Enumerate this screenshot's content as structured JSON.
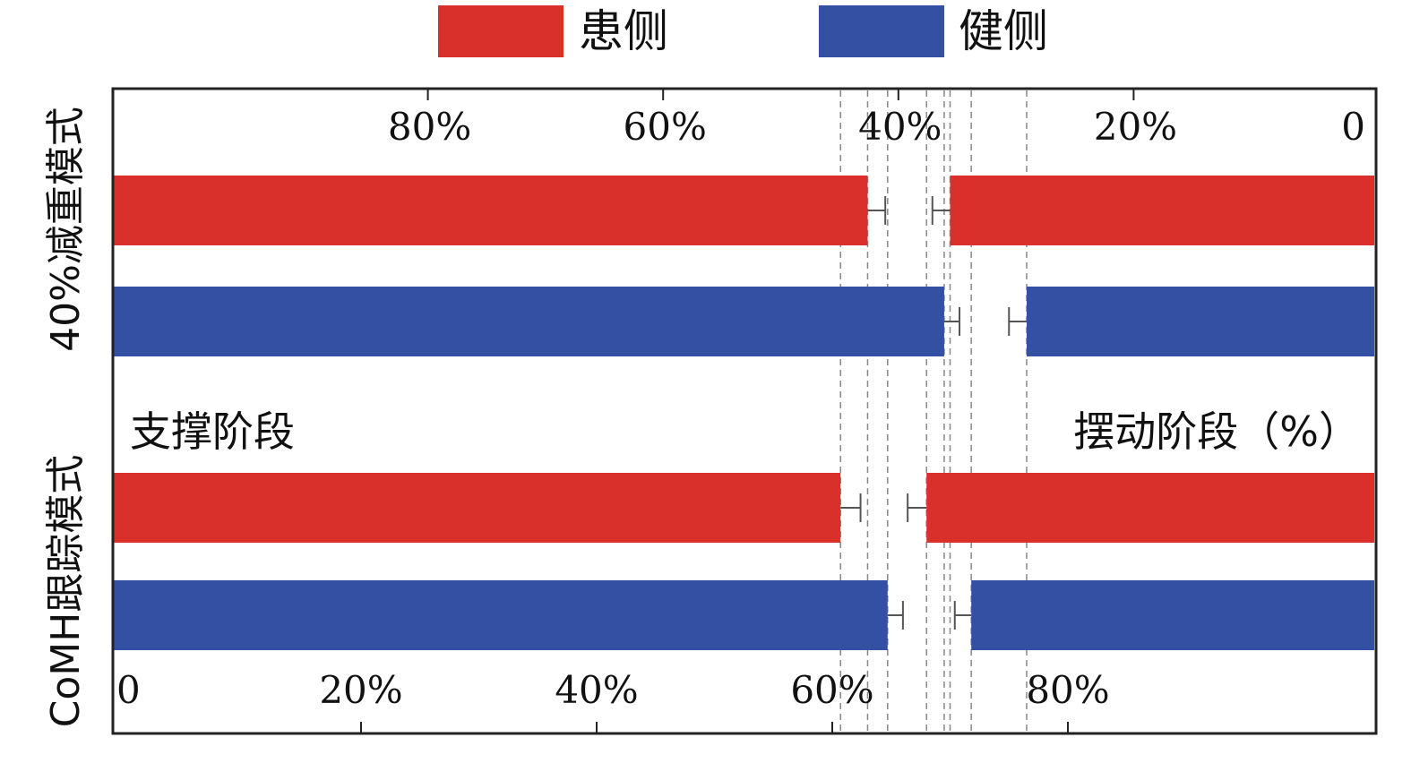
{
  "colors": {
    "affected": "#d9302b",
    "healthy": "#3450a2",
    "axis": "#222222",
    "guide": "#888888",
    "errorbar": "#555555"
  },
  "chart_data": {
    "type": "bar",
    "orientation": "horizontal",
    "legend": {
      "placement": "top",
      "entries": [
        "患侧",
        "健侧"
      ]
    },
    "stance_label": "支撑阶段",
    "swing_label": "摆动阶段（%）",
    "bottom_axis": {
      "direction": "left-to-right",
      "range": [
        0,
        100
      ],
      "ticks": [
        "0",
        "20%",
        "40%",
        "60%",
        "80%"
      ]
    },
    "top_axis": {
      "direction": "right-to-left",
      "range": [
        0,
        100
      ],
      "ticks": [
        "0",
        "20%",
        "40%",
        "60%",
        "80%"
      ]
    },
    "groups": [
      {
        "name": "40%减重模式",
        "bars": [
          {
            "series": "患侧",
            "stance_end": 63.0,
            "stance_err": 1.5,
            "swing_start": 70.0,
            "swing_err": 1.5
          },
          {
            "series": "健侧",
            "stance_end": 69.5,
            "stance_err": 1.3,
            "swing_start": 76.5,
            "swing_err": 1.5
          }
        ]
      },
      {
        "name": "CoMH跟踪模式",
        "bars": [
          {
            "series": "患侧",
            "stance_end": 60.7,
            "stance_err": 1.7,
            "swing_start": 68.0,
            "swing_err": 1.6
          },
          {
            "series": "健侧",
            "stance_end": 64.7,
            "stance_err": 1.3,
            "swing_start": 71.8,
            "swing_err": 1.4
          }
        ]
      }
    ]
  }
}
